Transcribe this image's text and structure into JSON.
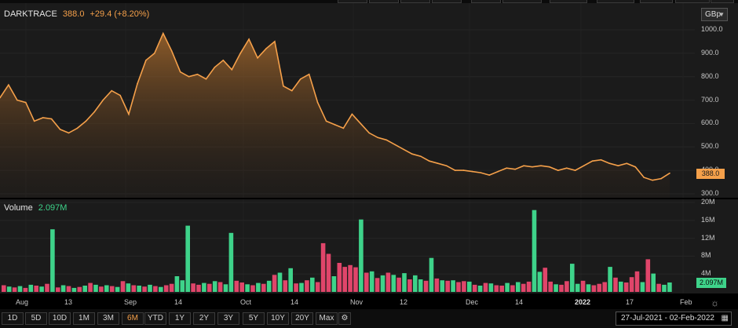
{
  "header": {
    "symbol": "DARKTRACE",
    "last": "388.0",
    "change": "+29.4 (+8.20%)",
    "currency": "GBp",
    "last_marker": "388.0"
  },
  "volume": {
    "label": "Volume",
    "value": "2.097M",
    "marker": "2.097M"
  },
  "price_axis": [
    "1000.0",
    "900.0",
    "800.0",
    "700.0",
    "600.0",
    "500.0",
    "400.0",
    "300.0"
  ],
  "volume_axis": [
    "20M",
    "16M",
    "12M",
    "8M",
    "4M"
  ],
  "x_axis": [
    "Aug",
    "13",
    "Sep",
    "14",
    "Oct",
    "14",
    "Nov",
    "12",
    "Dec",
    "14",
    "2022",
    "17",
    "Feb"
  ],
  "ranges": [
    "1D",
    "5D",
    "10D",
    "1M",
    "3M",
    "6M",
    "YTD",
    "1Y",
    "2Y",
    "3Y",
    "5Y",
    "10Y",
    "20Y",
    "Max"
  ],
  "active_range": "6M",
  "date_range": {
    "from": "27-Jul-2021",
    "sep": "-",
    "to": "02-Feb-2022"
  },
  "icons": {
    "settings": "gear-icon",
    "calendar": "calendar-icon",
    "chart_settings": "sun-gear-icon",
    "dropdown": "chevron-down-icon"
  },
  "colors": {
    "price_line": "#f5a04a",
    "volume_up": "#3ed38a",
    "volume_down": "#e0456a",
    "panel_bg": "#1b1b1b"
  },
  "chart_data": [
    {
      "type": "line",
      "series": [
        {
          "values": [
            710,
            765,
            700,
            690,
            610,
            625,
            620,
            575,
            560,
            580,
            610,
            650,
            700,
            740,
            720,
            640,
            770,
            870,
            900,
            985,
            910,
            820,
            800,
            810,
            790,
            840,
            870,
            830,
            900,
            960,
            880,
            920,
            950,
            760,
            740,
            790,
            810,
            690,
            610,
            595,
            580,
            640,
            600,
            560,
            540,
            530,
            510,
            490,
            470,
            460,
            440,
            430,
            420,
            400,
            400,
            395,
            390,
            380,
            395,
            410,
            405,
            420,
            415,
            420,
            415,
            400,
            410,
            400,
            420,
            440,
            445,
            430,
            420,
            430,
            415,
            370,
            358,
            365,
            388
          ]
        }
      ],
      "ylim": [
        300,
        1000
      ]
    },
    {
      "type": "bar",
      "series": [
        {
          "values": [
            1.5,
            1.2,
            1.0,
            1.3,
            0.9,
            1.6,
            1.4,
            1.2,
            1.8,
            14.0,
            1.0,
            1.5,
            1.3,
            0.9,
            1.1,
            1.4,
            2.0,
            1.6,
            1.2,
            1.5,
            1.3,
            1.1,
            2.4,
            1.9,
            1.5,
            1.4,
            1.2,
            1.6,
            1.3,
            1.1,
            1.5,
            1.8,
            3.5,
            2.6,
            14.8,
            1.9,
            1.6,
            2.0,
            1.8,
            2.4,
            2.2,
            1.7,
            13.2,
            2.5,
            2.1,
            1.7,
            1.5,
            2.0,
            1.8,
            2.5,
            3.8,
            4.3,
            2.6,
            5.3,
            1.9,
            2.0,
            2.6,
            3.2,
            2.2,
            10.9,
            8.5,
            3.5,
            6.5,
            5.6,
            6.0,
            5.5,
            16.2,
            4.3,
            4.6,
            3.1,
            3.7,
            4.3,
            3.8,
            3.2,
            4.2,
            2.8,
            3.7,
            2.8,
            2.5,
            7.6,
            3.0,
            2.6,
            2.5,
            2.6,
            2.2,
            2.4,
            2.3,
            1.6,
            1.4,
            2.0,
            1.9,
            1.5,
            1.4,
            2.0,
            1.5,
            2.2,
            1.8,
            2.3,
            18.3,
            4.5,
            5.4,
            2.3,
            1.7,
            1.6,
            2.4,
            6.3,
            1.8,
            2.5,
            1.7,
            1.5,
            1.8,
            2.2,
            5.6,
            3.2,
            2.3,
            2.1,
            3.3,
            4.6,
            2.2,
            7.3,
            4.1,
            1.8,
            1.6,
            2.1
          ],
          "colors": [
            "d",
            "g",
            "d",
            "g",
            "d",
            "g",
            "d",
            "g",
            "d",
            "g",
            "d",
            "g",
            "d",
            "g",
            "d",
            "g",
            "d",
            "g",
            "d",
            "g",
            "d",
            "g",
            "d",
            "g",
            "d",
            "g",
            "d",
            "g",
            "d",
            "g",
            "d",
            "d",
            "g",
            "g",
            "g",
            "d",
            "d",
            "g",
            "d",
            "g",
            "d",
            "g",
            "g",
            "d",
            "d",
            "g",
            "d",
            "g",
            "d",
            "g",
            "d",
            "g",
            "d",
            "g",
            "d",
            "g",
            "d",
            "g",
            "d",
            "d",
            "d",
            "g",
            "d",
            "d",
            "d",
            "d",
            "g",
            "d",
            "g",
            "d",
            "g",
            "d",
            "g",
            "d",
            "g",
            "d",
            "g",
            "g",
            "d",
            "g",
            "d",
            "g",
            "d",
            "g",
            "d",
            "d",
            "g",
            "d",
            "g",
            "d",
            "g",
            "d",
            "d",
            "g",
            "d",
            "g",
            "d",
            "d",
            "g",
            "g",
            "d",
            "d",
            "g",
            "d",
            "d",
            "g",
            "g",
            "d",
            "g",
            "d",
            "d",
            "d",
            "g",
            "d",
            "g",
            "d",
            "d",
            "d",
            "g",
            "d",
            "g",
            "d",
            "g",
            "g"
          ]
        }
      ],
      "ylim": [
        0,
        20
      ]
    }
  ]
}
